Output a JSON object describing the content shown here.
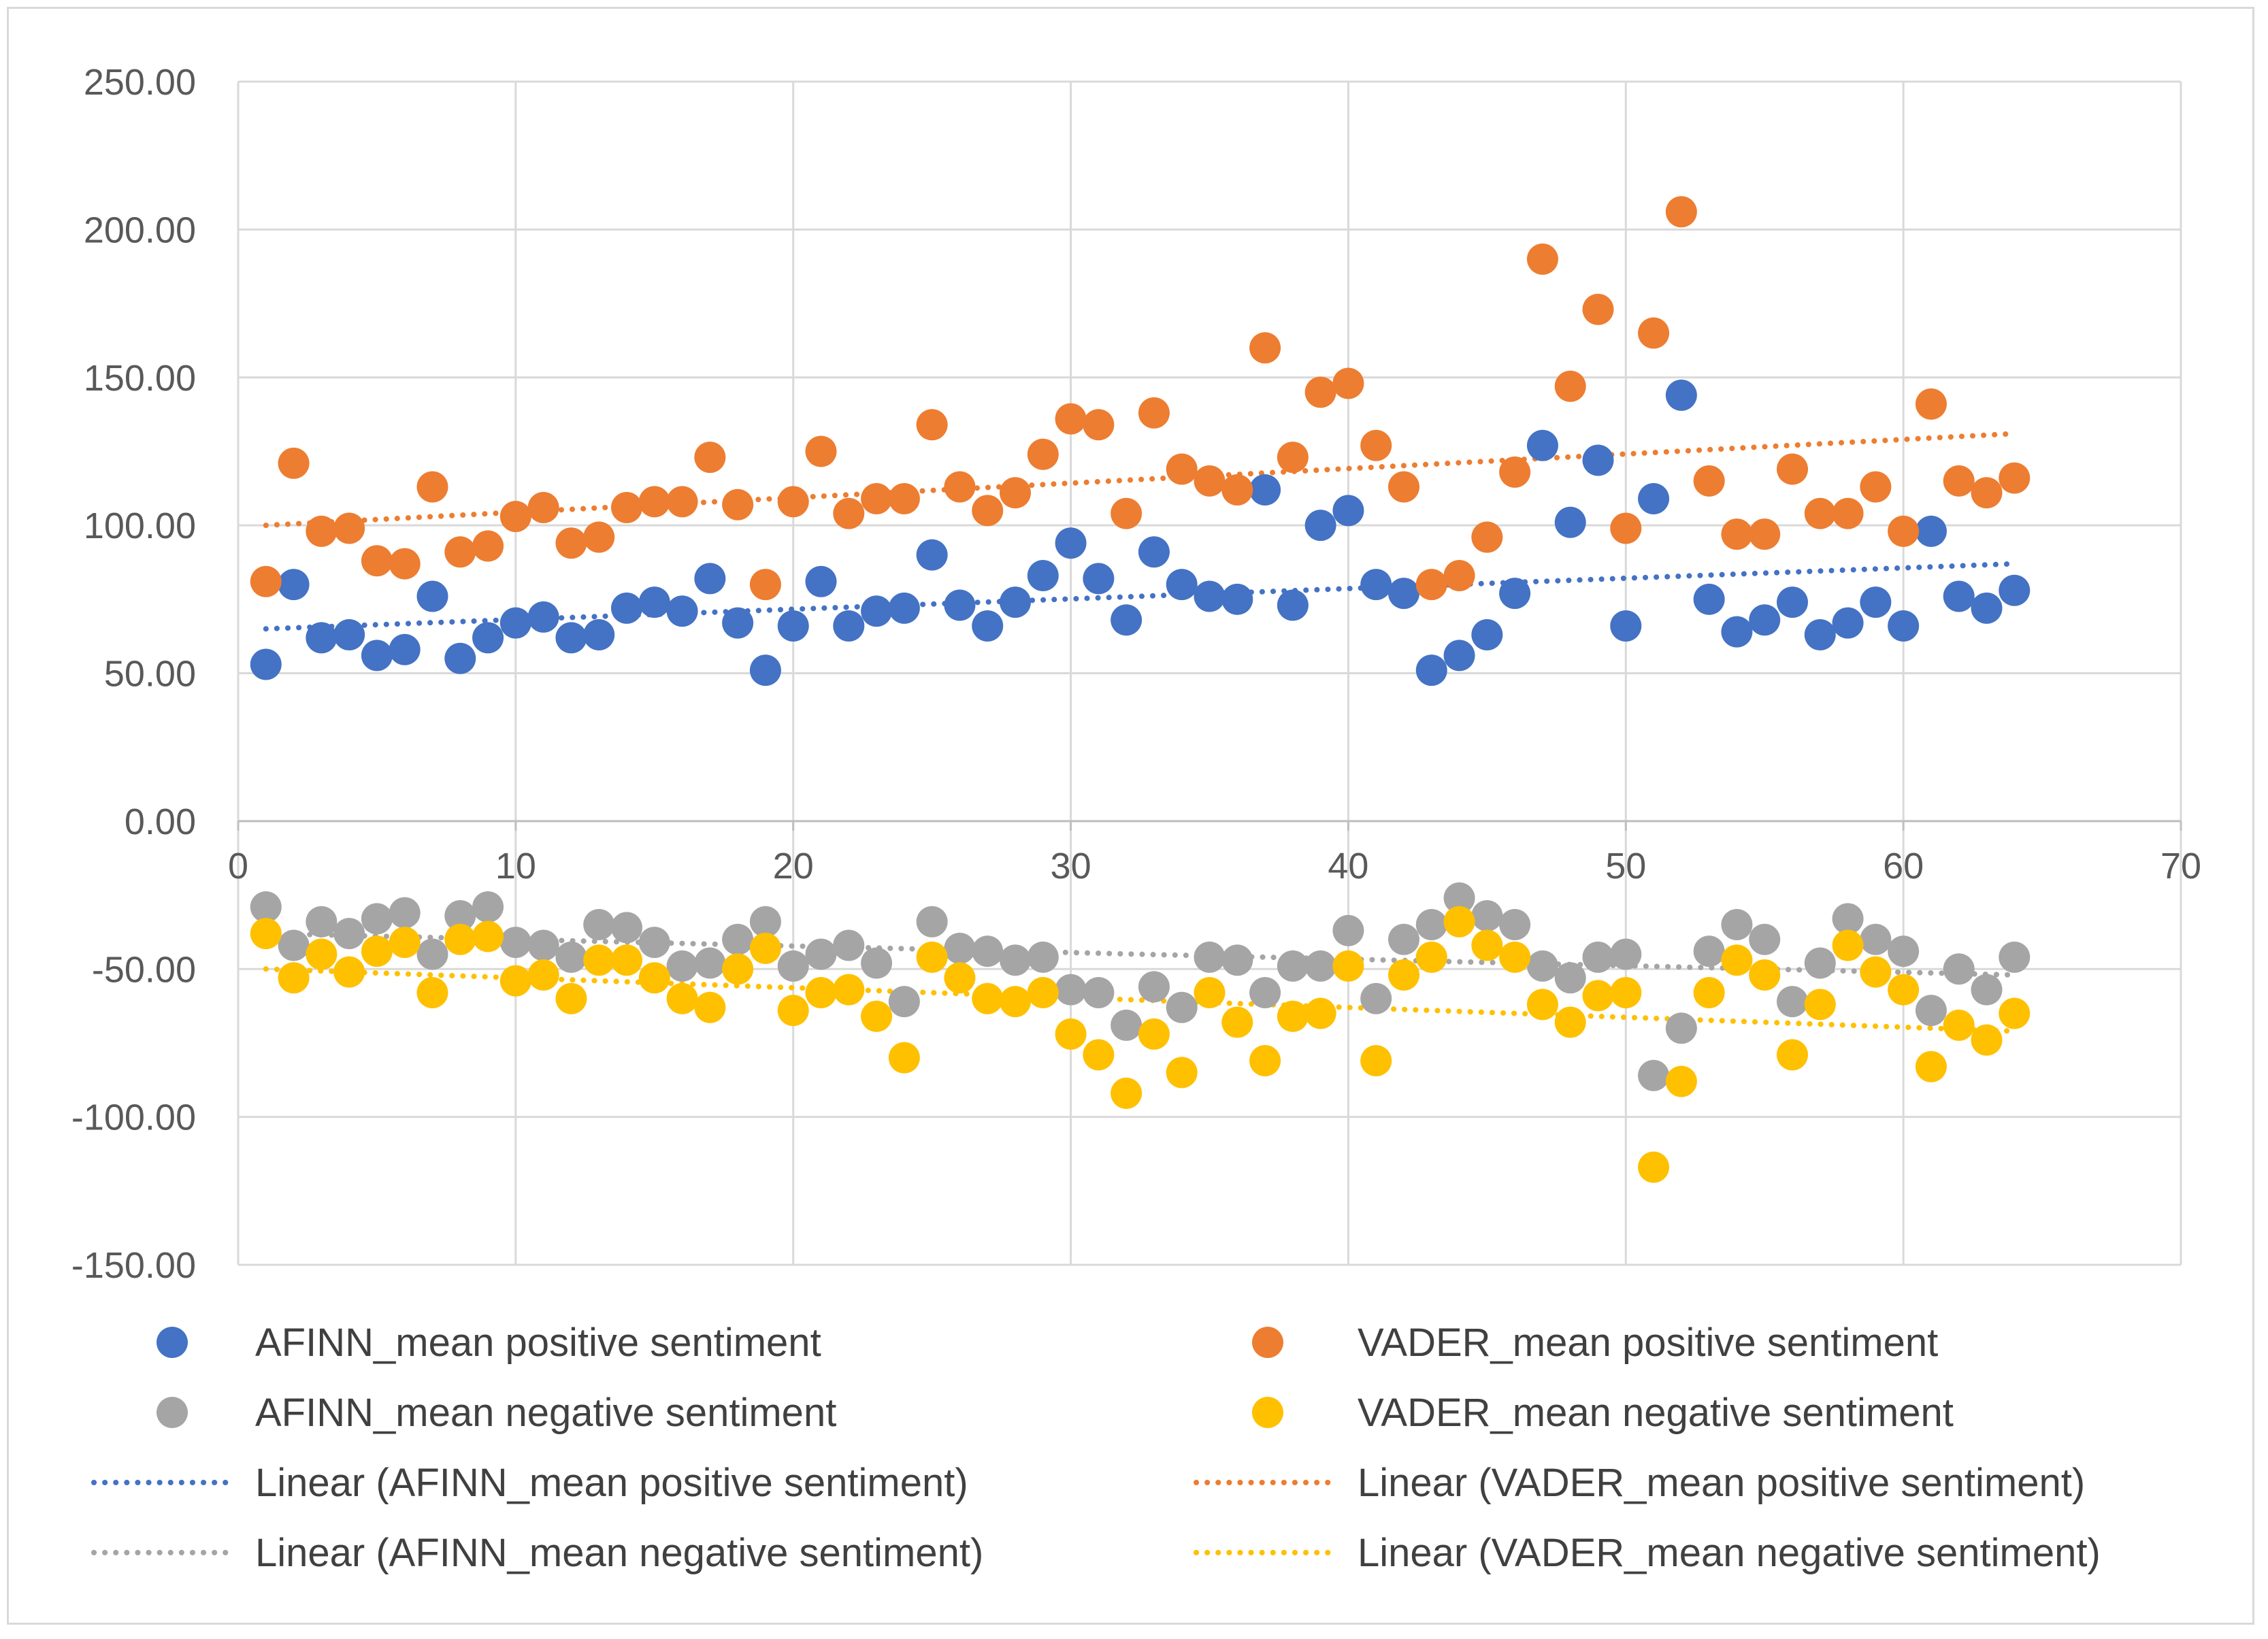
{
  "chart_data": {
    "type": "scatter",
    "title": "",
    "xlabel": "",
    "ylabel": "",
    "xlim": [
      0,
      70
    ],
    "ylim": [
      -150,
      250
    ],
    "x_ticks": [
      0,
      10,
      20,
      30,
      40,
      50,
      60,
      70
    ],
    "y_ticks": [
      250,
      200,
      150,
      100,
      50,
      0,
      -50,
      -100,
      -150
    ],
    "x_tick_labels": [
      "0",
      "10",
      "20",
      "30",
      "40",
      "50",
      "60",
      "70"
    ],
    "y_tick_labels": [
      "250.00",
      "200.00",
      "150.00",
      "100.00",
      "50.00",
      "0.00",
      "-50.00",
      "-100.00",
      "-150.00"
    ],
    "grid": true,
    "legend_position": "bottom",
    "series": [
      {
        "name": "AFINN_mean positive sentiment",
        "color": "#4472c4",
        "x": [
          1,
          2,
          3,
          4,
          5,
          6,
          7,
          8,
          9,
          10,
          11,
          12,
          13,
          14,
          15,
          16,
          17,
          18,
          19,
          20,
          21,
          22,
          23,
          24,
          25,
          26,
          27,
          28,
          29,
          30,
          31,
          32,
          33,
          34,
          35,
          36,
          37,
          38,
          39,
          40,
          41,
          42,
          43,
          44,
          45,
          46,
          47,
          48,
          49,
          50,
          51,
          52,
          53,
          54,
          55,
          56,
          57,
          58,
          59,
          60,
          61,
          62,
          63,
          64
        ],
        "values": [
          53,
          80,
          62,
          63,
          56,
          58,
          76,
          55,
          62,
          67,
          69,
          62,
          63,
          72,
          74,
          71,
          82,
          67,
          51,
          66,
          81,
          66,
          71,
          72,
          90,
          73,
          66,
          74,
          83,
          94,
          82,
          68,
          91,
          80,
          76,
          75,
          112,
          73,
          100,
          105,
          80,
          77,
          51,
          56,
          63,
          77,
          127,
          101,
          122,
          66,
          109,
          144,
          75,
          64,
          68,
          74,
          63,
          67,
          74,
          66,
          98,
          76,
          72,
          78
        ]
      },
      {
        "name": "VADER_mean positive sentiment",
        "color": "#ed7d31",
        "x": [
          1,
          2,
          3,
          4,
          5,
          6,
          7,
          8,
          9,
          10,
          11,
          12,
          13,
          14,
          15,
          16,
          17,
          18,
          19,
          20,
          21,
          22,
          23,
          24,
          25,
          26,
          27,
          28,
          29,
          30,
          31,
          32,
          33,
          34,
          35,
          36,
          37,
          38,
          39,
          40,
          41,
          42,
          43,
          44,
          45,
          46,
          47,
          48,
          49,
          50,
          51,
          52,
          53,
          54,
          55,
          56,
          57,
          58,
          59,
          60,
          61,
          62,
          63,
          64
        ],
        "values": [
          81,
          121,
          98,
          99,
          88,
          87,
          113,
          91,
          93,
          103,
          106,
          94,
          96,
          106,
          108,
          108,
          123,
          107,
          80,
          108,
          125,
          104,
          109,
          109,
          134,
          113,
          105,
          111,
          124,
          136,
          134,
          104,
          138,
          119,
          115,
          112,
          160,
          123,
          145,
          148,
          127,
          113,
          80,
          83,
          96,
          118,
          190,
          147,
          173,
          99,
          165,
          206,
          115,
          97,
          97,
          119,
          104,
          104,
          113,
          98,
          141,
          115,
          111,
          116
        ]
      },
      {
        "name": "AFINN_mean negative sentiment",
        "color": "#a5a5a5",
        "x": [
          1,
          2,
          3,
          4,
          5,
          6,
          7,
          8,
          9,
          10,
          11,
          12,
          13,
          14,
          15,
          16,
          17,
          18,
          19,
          20,
          21,
          22,
          23,
          24,
          25,
          26,
          27,
          28,
          29,
          30,
          31,
          32,
          33,
          34,
          35,
          36,
          37,
          38,
          39,
          40,
          41,
          42,
          43,
          44,
          45,
          46,
          47,
          48,
          49,
          50,
          51,
          52,
          53,
          54,
          55,
          56,
          57,
          58,
          59,
          60,
          61,
          62,
          63,
          64
        ],
        "values": [
          -29,
          -42,
          -34,
          -38,
          -33,
          -31,
          -45,
          -32,
          -29,
          -41,
          -42,
          -46,
          -35,
          -36,
          -41,
          -49,
          -48,
          -40,
          -34,
          -49,
          -45,
          -42,
          -48,
          -61,
          -34,
          -43,
          -44,
          -47,
          -46,
          -57,
          -58,
          -69,
          -56,
          -63,
          -46,
          -47,
          -58,
          -49,
          -49,
          -37,
          -60,
          -40,
          -35,
          -26,
          -32,
          -35,
          -49,
          -53,
          -46,
          -45,
          -86,
          -70,
          -44,
          -35,
          -40,
          -61,
          -48,
          -33,
          -40,
          -44,
          -64,
          -50,
          -57,
          -46
        ]
      },
      {
        "name": "VADER_mean negative sentiment",
        "color": "#ffc000",
        "x": [
          1,
          2,
          3,
          4,
          5,
          6,
          7,
          8,
          9,
          10,
          11,
          12,
          13,
          14,
          15,
          16,
          17,
          18,
          19,
          20,
          21,
          22,
          23,
          24,
          25,
          26,
          27,
          28,
          29,
          30,
          31,
          32,
          33,
          34,
          35,
          36,
          37,
          38,
          39,
          40,
          41,
          42,
          43,
          44,
          45,
          46,
          47,
          48,
          49,
          50,
          51,
          52,
          53,
          54,
          55,
          56,
          57,
          58,
          59,
          60,
          61,
          62,
          63,
          64
        ],
        "values": [
          -38,
          -53,
          -45,
          -51,
          -44,
          -41,
          -58,
          -40,
          -39,
          -54,
          -52,
          -60,
          -47,
          -47,
          -53,
          -60,
          -63,
          -50,
          -43,
          -64,
          -58,
          -57,
          -66,
          -80,
          -46,
          -53,
          -60,
          -61,
          -58,
          -72,
          -79,
          -92,
          -72,
          -85,
          -58,
          -68,
          -81,
          -66,
          -65,
          -49,
          -81,
          -52,
          -46,
          -34,
          -42,
          -46,
          -62,
          -68,
          -59,
          -58,
          -117,
          -88,
          -58,
          -47,
          -52,
          -79,
          -62,
          -42,
          -51,
          -57,
          -83,
          -69,
          -74,
          -65
        ]
      }
    ],
    "trendlines": [
      {
        "name": "Linear (AFINN_mean positive sentiment)",
        "color": "#4472c4",
        "x_range": [
          1,
          64
        ],
        "y_start": 65,
        "y_end": 87
      },
      {
        "name": "Linear (VADER_mean positive sentiment)",
        "color": "#ed7d31",
        "x_range": [
          1,
          64
        ],
        "y_start": 100,
        "y_end": 131
      },
      {
        "name": "Linear (AFINN_mean negative sentiment)",
        "color": "#a5a5a5",
        "x_range": [
          1,
          64
        ],
        "y_start": -38,
        "y_end": -52
      },
      {
        "name": "Linear (VADER_mean negative sentiment)",
        "color": "#ffc000",
        "x_range": [
          1,
          64
        ],
        "y_start": -50,
        "y_end": -71
      }
    ]
  }
}
